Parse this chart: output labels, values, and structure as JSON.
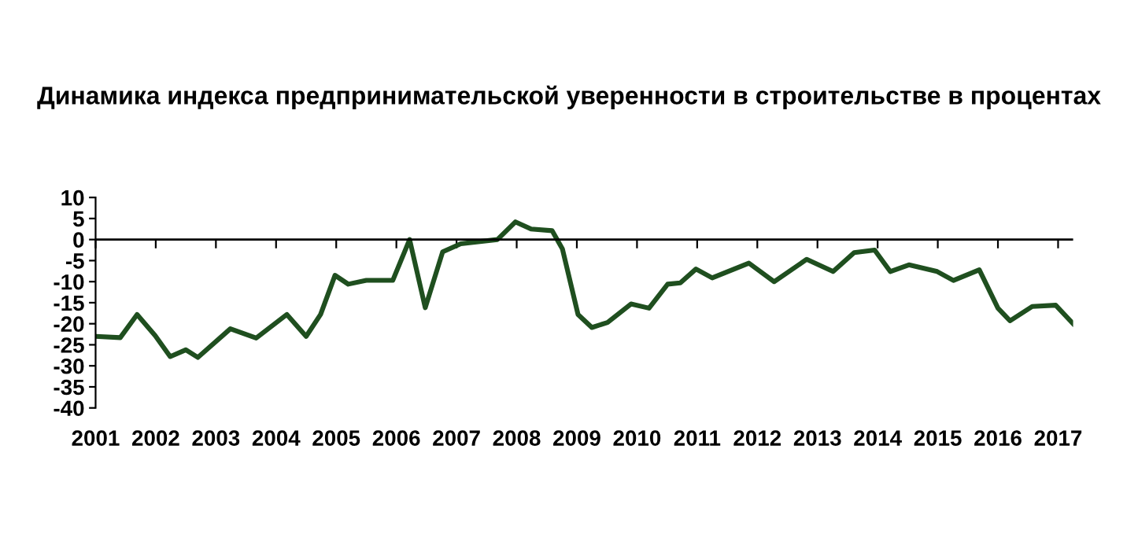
{
  "chart_data": {
    "type": "line",
    "title": "Динамика индекса предпринимательской уверенности в строительстве в процентах",
    "x": [
      2001.0,
      2001.41,
      2001.69,
      2001.99,
      2002.24,
      2002.5,
      2002.7,
      2003.24,
      2003.67,
      2004.18,
      2004.5,
      2004.74,
      2004.98,
      2005.2,
      2005.5,
      2005.94,
      2006.22,
      2006.48,
      2006.77,
      2007.07,
      2007.68,
      2007.98,
      2008.24,
      2008.59,
      2008.76,
      2009.02,
      2009.25,
      2009.51,
      2009.9,
      2010.2,
      2010.51,
      2010.72,
      2010.98,
      2011.25,
      2011.86,
      2012.28,
      2012.82,
      2013.26,
      2013.61,
      2013.95,
      2014.21,
      2014.52,
      2014.99,
      2015.26,
      2015.69,
      2016.0,
      2016.2,
      2016.57,
      2016.96,
      2017.25
    ],
    "series": [
      {
        "color": "#1f4f1f",
        "values": [
          -23,
          -23.3,
          -17.8,
          -22.8,
          -27.8,
          -26.2,
          -28,
          -21.2,
          -23.4,
          -17.8,
          -23,
          -17.8,
          -8.5,
          -10.6,
          -9.7,
          -9.7,
          0,
          -16.2,
          -2.9,
          -1,
          0,
          4.2,
          2.5,
          2.1,
          -2.2,
          -17.8,
          -20.9,
          -19.7,
          -15.3,
          -16.3,
          -10.6,
          -10.3,
          -7,
          -9.1,
          -5.6,
          -10,
          -4.7,
          -7.6,
          -3.1,
          -2.5,
          -7.6,
          -6,
          -7.6,
          -9.7,
          -7.2,
          -16.3,
          -19.3,
          -15.9,
          -15.6,
          -20
        ]
      }
    ],
    "xlim": [
      2001,
      2017.25
    ],
    "xticks": [
      2001,
      2002,
      2003,
      2004,
      2005,
      2006,
      2007,
      2008,
      2009,
      2010,
      2011,
      2012,
      2013,
      2014,
      2015,
      2016,
      2017
    ],
    "ylim": [
      -40,
      10
    ],
    "yticks": [
      -40,
      -35,
      -30,
      -25,
      -20,
      -15,
      -10,
      -5,
      0,
      5,
      10
    ],
    "ref_lines": [
      {
        "axis": "y",
        "value": 0,
        "color": "#000000"
      }
    ],
    "grid": false,
    "legend": false,
    "marker": "none",
    "line_style": "solid"
  }
}
